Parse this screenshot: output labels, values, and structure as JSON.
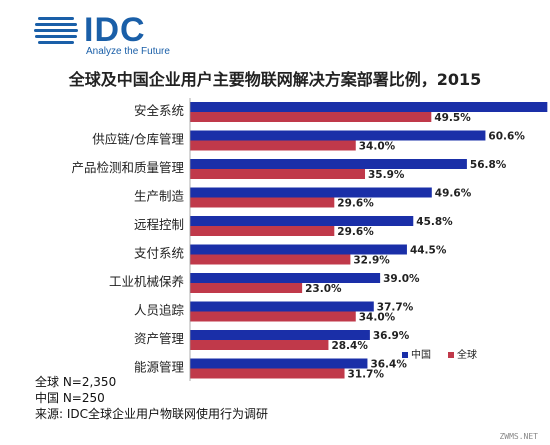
{
  "header": {
    "logo_text": "IDC",
    "logo_tagline": "Analyze the Future",
    "title": "全球及中国企业用户主要物联网解决方案部署比例，2015"
  },
  "notes": {
    "global_n": "全球 N=2,350",
    "china_n": "中国 N=250",
    "source": "来源: IDC全球企业用户物联网使用行为调研"
  },
  "watermark": "ZWMS.NET",
  "colors": {
    "china": "#1a2fa8",
    "global": "#c0394a"
  },
  "chart_data": {
    "type": "bar",
    "orientation": "horizontal",
    "categories": [
      "安全系统",
      "供应链/仓库管理",
      "产品检测和质量管理",
      "生产制造",
      "远程控制",
      "支付系统",
      "工业机械保养",
      "人员追踪",
      "资产管理",
      "能源管理"
    ],
    "series": [
      {
        "name": "中国",
        "values": [
          73.3,
          60.6,
          56.8,
          49.6,
          45.8,
          44.5,
          39.0,
          37.7,
          36.9,
          36.4
        ]
      },
      {
        "name": "全球",
        "values": [
          49.5,
          34.0,
          35.9,
          29.6,
          29.6,
          32.9,
          23.0,
          34.0,
          28.4,
          31.7
        ]
      }
    ],
    "value_suffix": "%",
    "xlim": [
      0,
      80
    ],
    "grid": false,
    "legend_position": "bottom-right"
  }
}
